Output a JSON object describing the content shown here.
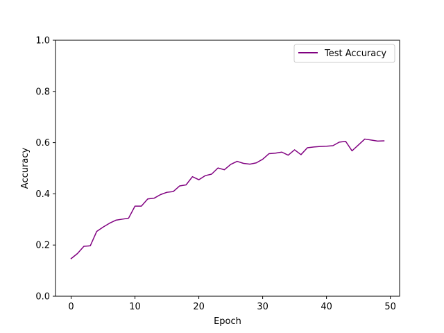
{
  "chart_data": {
    "type": "line",
    "title": "",
    "xlabel": "Epoch",
    "ylabel": "Accuracy",
    "xlim": [
      -2.45,
      51.45
    ],
    "ylim": [
      0.0,
      1.0
    ],
    "xticks": [
      0,
      10,
      20,
      30,
      40,
      50
    ],
    "yticks": [
      0.0,
      0.2,
      0.4,
      0.6,
      0.8,
      1.0
    ],
    "xtick_labels": [
      "0",
      "10",
      "20",
      "30",
      "40",
      "50"
    ],
    "ytick_labels": [
      "0.0",
      "0.2",
      "0.4",
      "0.6",
      "0.8",
      "1.0"
    ],
    "grid": false,
    "legend_position": "upper right",
    "series": [
      {
        "name": "Test Accuracy",
        "color": "#800080",
        "x": [
          0,
          1,
          2,
          3,
          4,
          5,
          6,
          7,
          8,
          9,
          10,
          11,
          12,
          13,
          14,
          15,
          16,
          17,
          18,
          19,
          20,
          21,
          22,
          23,
          24,
          25,
          26,
          27,
          28,
          29,
          30,
          31,
          32,
          33,
          34,
          35,
          36,
          37,
          38,
          39,
          40,
          41,
          42,
          43,
          44,
          45,
          46,
          47,
          48,
          49
        ],
        "y": [
          0.147,
          0.167,
          0.195,
          0.197,
          0.253,
          0.27,
          0.285,
          0.297,
          0.301,
          0.305,
          0.352,
          0.352,
          0.38,
          0.383,
          0.397,
          0.406,
          0.409,
          0.431,
          0.435,
          0.467,
          0.455,
          0.471,
          0.477,
          0.501,
          0.494,
          0.515,
          0.527,
          0.519,
          0.516,
          0.521,
          0.535,
          0.557,
          0.559,
          0.563,
          0.551,
          0.572,
          0.553,
          0.58,
          0.583,
          0.585,
          0.586,
          0.588,
          0.602,
          0.605,
          0.568,
          0.591,
          0.614,
          0.61,
          0.606,
          0.607
        ]
      }
    ]
  }
}
